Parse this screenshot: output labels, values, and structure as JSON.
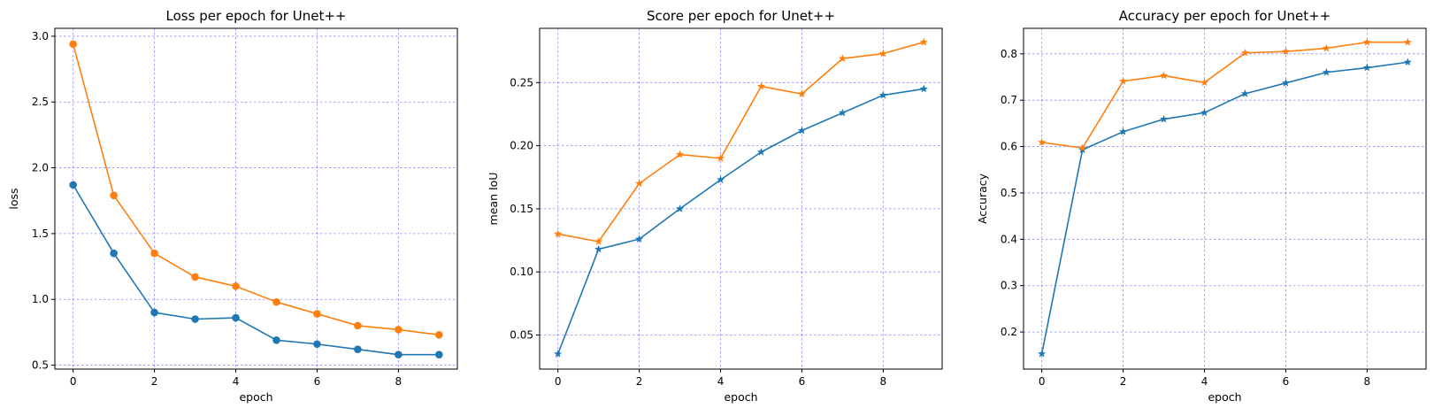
{
  "chart_data": [
    {
      "type": "line",
      "title": "Loss per epoch for Unet++",
      "xlabel": "epoch",
      "ylabel": "loss",
      "xlim": [
        -0.45,
        9.45
      ],
      "ylim": [
        0.47,
        3.06
      ],
      "xticks": [
        0,
        2,
        4,
        6,
        8
      ],
      "yticks": [
        0.5,
        1.0,
        1.5,
        2.0,
        2.5,
        3.0
      ],
      "ytick_decimals": 1,
      "grid": true,
      "marker": "circle",
      "x": [
        0,
        1,
        2,
        3,
        4,
        5,
        6,
        7,
        8,
        9
      ],
      "series": [
        {
          "color": "#1f77b4",
          "values": [
            1.87,
            1.35,
            0.9,
            0.85,
            0.86,
            0.69,
            0.66,
            0.62,
            0.58,
            0.58
          ]
        },
        {
          "color": "#ff7f0e",
          "values": [
            2.94,
            1.79,
            1.35,
            1.17,
            1.1,
            0.98,
            0.89,
            0.8,
            0.77,
            0.73
          ]
        }
      ]
    },
    {
      "type": "line",
      "title": "Score per epoch for Unet++",
      "xlabel": "epoch",
      "ylabel": "mean IoU",
      "xlim": [
        -0.45,
        9.45
      ],
      "ylim": [
        0.023,
        0.293
      ],
      "xticks": [
        0,
        2,
        4,
        6,
        8
      ],
      "yticks": [
        0.05,
        0.1,
        0.15,
        0.2,
        0.25
      ],
      "ytick_decimals": 2,
      "grid": true,
      "marker": "star",
      "x": [
        0,
        1,
        2,
        3,
        4,
        5,
        6,
        7,
        8,
        9
      ],
      "series": [
        {
          "color": "#1f77b4",
          "values": [
            0.035,
            0.118,
            0.126,
            0.15,
            0.173,
            0.195,
            0.212,
            0.226,
            0.24,
            0.245
          ]
        },
        {
          "color": "#ff7f0e",
          "values": [
            0.13,
            0.124,
            0.17,
            0.193,
            0.19,
            0.247,
            0.241,
            0.269,
            0.273,
            0.282
          ]
        }
      ]
    },
    {
      "type": "line",
      "title": "Accuracy per epoch for Unet++",
      "xlabel": "epoch",
      "ylabel": "Accuracy",
      "xlim": [
        -0.45,
        9.45
      ],
      "ylim": [
        0.12,
        0.855
      ],
      "xticks": [
        0,
        2,
        4,
        6,
        8
      ],
      "yticks": [
        0.2,
        0.3,
        0.4,
        0.5,
        0.6,
        0.7,
        0.8
      ],
      "ytick_decimals": 1,
      "grid": true,
      "marker": "star",
      "x": [
        0,
        1,
        2,
        3,
        4,
        5,
        6,
        7,
        8,
        9
      ],
      "series": [
        {
          "color": "#1f77b4",
          "values": [
            0.153,
            0.593,
            0.632,
            0.659,
            0.673,
            0.714,
            0.737,
            0.76,
            0.77,
            0.782
          ]
        },
        {
          "color": "#ff7f0e",
          "values": [
            0.609,
            0.597,
            0.741,
            0.753,
            0.738,
            0.802,
            0.805,
            0.812,
            0.825,
            0.825
          ]
        }
      ]
    }
  ]
}
